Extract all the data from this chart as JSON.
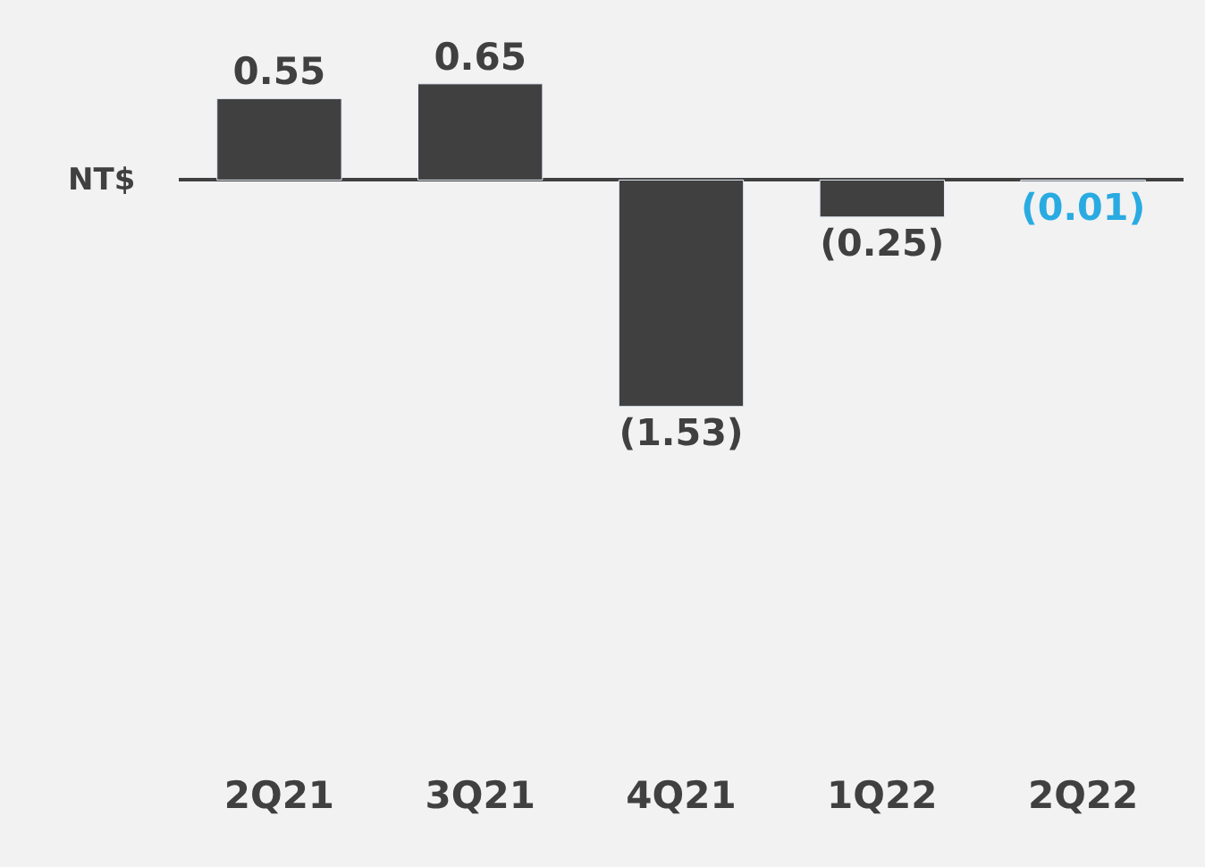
{
  "chart_data": {
    "type": "bar",
    "ylabel": "NT$",
    "categories": [
      "2Q21",
      "3Q21",
      "4Q21",
      "1Q22",
      "2Q22"
    ],
    "values": [
      0.55,
      0.65,
      -1.53,
      -0.25,
      -0.01
    ],
    "value_labels": [
      "0.55",
      "0.65",
      "(1.53)",
      "(0.25)",
      "(0.01)"
    ],
    "color": "#404040",
    "grid": false,
    "legend": false
  }
}
